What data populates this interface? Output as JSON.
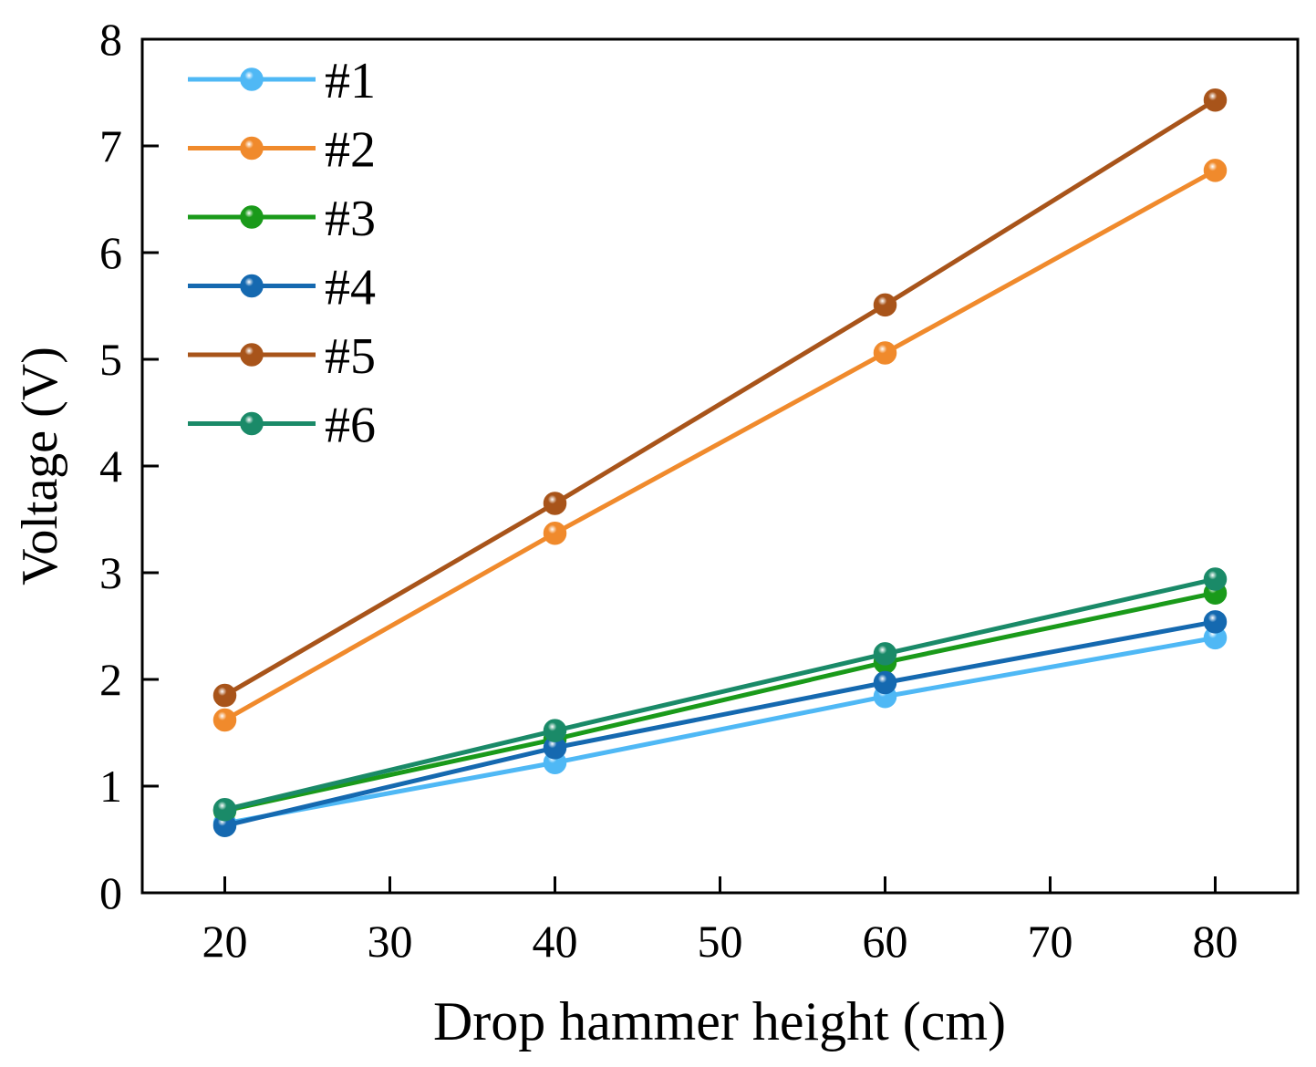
{
  "chart_data": {
    "type": "line",
    "title": "",
    "xlabel": "Drop hammer height (cm)",
    "ylabel": "Voltage (V)",
    "xlim": [
      15,
      85
    ],
    "ylim": [
      0,
      8
    ],
    "x_ticks": [
      20,
      30,
      40,
      50,
      60,
      70,
      80
    ],
    "y_ticks": [
      0,
      1,
      2,
      3,
      4,
      5,
      6,
      7,
      8
    ],
    "grid": false,
    "legend_position": "top-left",
    "x": [
      20,
      40,
      60,
      80
    ],
    "series": [
      {
        "name": "#1",
        "color": "#4fb8f5",
        "values": [
          0.65,
          1.22,
          1.84,
          2.39
        ]
      },
      {
        "name": "#2",
        "color": "#f08a2c",
        "values": [
          1.62,
          3.37,
          5.06,
          6.77
        ]
      },
      {
        "name": "#3",
        "color": "#1a9a1a",
        "values": [
          0.77,
          1.44,
          2.16,
          2.81
        ]
      },
      {
        "name": "#4",
        "color": "#1569b0",
        "values": [
          0.63,
          1.36,
          1.97,
          2.54
        ]
      },
      {
        "name": "#5",
        "color": "#a8541a",
        "values": [
          1.85,
          3.65,
          5.51,
          7.43
        ]
      },
      {
        "name": "#6",
        "color": "#1a8a68",
        "values": [
          0.78,
          1.52,
          2.24,
          2.94
        ]
      }
    ]
  }
}
